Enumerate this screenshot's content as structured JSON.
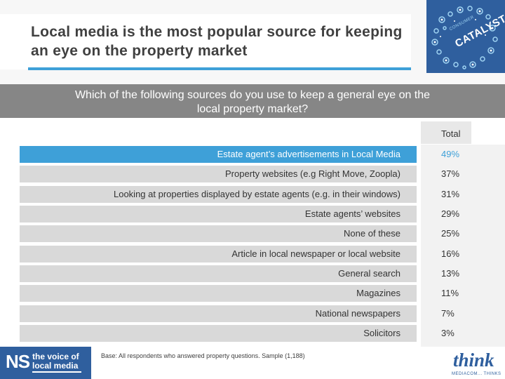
{
  "header": {
    "title": "Local media is the most popular source for keeping an eye on the property market",
    "logo_small_text": "CONSUMER",
    "logo_text": "CATALYST",
    "accent_color": "#3ea0d8",
    "brand_color": "#2f5f9e"
  },
  "question": "Which of the following sources do you use to keep a general eye on the local property market?",
  "table": {
    "total_header": "Total",
    "rows": [
      {
        "label": "Estate agent’s advertisements in Local Media",
        "value": "49%"
      },
      {
        "label": "Property websites (e.g Right Move, Zoopla)",
        "value": "37%"
      },
      {
        "label": "Looking at properties displayed by estate agents (e.g. in their windows)",
        "value": "31%"
      },
      {
        "label": "Estate agents’ websites",
        "value": "29%"
      },
      {
        "label": "None of these",
        "value": "25%"
      },
      {
        "label": "Article in local newspaper or local website",
        "value": "16%"
      },
      {
        "label": "General search",
        "value": "13%"
      },
      {
        "label": "Magazines",
        "value": "11%"
      },
      {
        "label": "National newspapers",
        "value": "7%"
      },
      {
        "label": "Solicitors",
        "value": "3%"
      }
    ]
  },
  "footer": {
    "ns_mark": "NS",
    "ns_line1": "the voice of",
    "ns_line2": "local media",
    "base_note": "Base: All respondents who answered property questions. Sample (1,188)",
    "think_logo": "think",
    "think_sub": "MEDIACOM... THINKS"
  }
}
